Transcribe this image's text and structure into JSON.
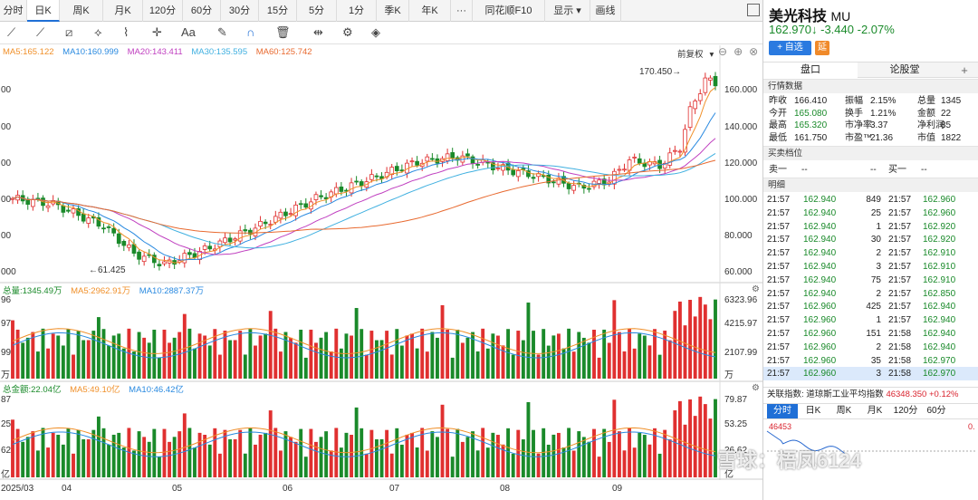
{
  "tabs": [
    "分时",
    "日K",
    "周K",
    "月K",
    "120分",
    "60分",
    "30分",
    "15分",
    "5分",
    "1分",
    "季K",
    "年K",
    "···",
    "同花顺F10",
    "显示 ▾",
    "画线"
  ],
  "tabs_active": "日K",
  "toolbar": {
    "icons": [
      "line-icon",
      "ray-icon",
      "channel-icon",
      "trend-icon",
      "wave-icon",
      "cross-icon",
      "text-icon",
      "eraser-icon",
      "magnet-icon",
      "trash-icon",
      "move-icon",
      "gear-icon",
      "layers-icon"
    ],
    "text_tool": "Aa"
  },
  "ma_price": {
    "ma5": "MA5:165.122",
    "ma10": "MA10:160.999",
    "ma20": "MA20:143.411",
    "ma30": "MA30:135.595",
    "ma60": "MA60:125.742",
    "adjust": "前复权",
    "colors": {
      "ma5": "#f0902a",
      "ma10": "#2a8ae0",
      "ma20": "#c040c0",
      "ma30": "#40b0e0",
      "ma60": "#e86a30"
    }
  },
  "price_axis": {
    "right": [
      "160.000",
      "140.000",
      "120.000",
      "100.000",
      "80.000",
      "60.000"
    ],
    "left": [
      "00",
      "00",
      "00",
      "00",
      "00",
      "000"
    ]
  },
  "annotations": {
    "high": "170.450→",
    "low": "←61.425"
  },
  "vol": {
    "title": "总量:1345.49万",
    "ma5": "MA5:2962.91万",
    "ma10": "MA10:2887.37万",
    "axis": [
      "6323.96",
      "4215.97",
      "2107.99",
      "万"
    ],
    "left": [
      "96",
      "97",
      "99",
      "万"
    ]
  },
  "amt": {
    "title": "总金额:22.04亿",
    "ma5": "MA5:49.10亿",
    "ma10": "MA10:46.42亿",
    "axis": [
      "79.87",
      "53.25",
      "26.62",
      "亿"
    ],
    "left": [
      "87",
      "25",
      "62",
      "亿"
    ]
  },
  "xaxis": [
    "2025/03",
    "04",
    "05",
    "06",
    "07",
    "08",
    "09"
  ],
  "watermark": "雪球：梧凤6124",
  "stock": {
    "name": "美光科技",
    "code": "MU",
    "price": "162.970↓",
    "change": "-3.440",
    "pct": "-2.07%",
    "add_btn": "+ 自选",
    "yan": "延"
  },
  "side_tabs": [
    "盘口",
    "论股堂",
    "+"
  ],
  "quote_title": "行情数据",
  "quote": [
    [
      "昨收",
      "166.410",
      "振幅",
      "2.15%",
      "总量",
      "1345"
    ],
    [
      "今开",
      "165.080",
      "换手",
      "1.21%",
      "金额",
      "22"
    ],
    [
      "最高",
      "165.320",
      "市净率",
      "3.37",
      "净利润",
      "85"
    ],
    [
      "最低",
      "161.750",
      "市盈™",
      "21.36",
      "市值",
      "1822"
    ]
  ],
  "bidask_title": "买卖档位",
  "bidask": {
    "sell": "卖一",
    "sell_v": "--",
    "buy": "买一",
    "buy_v": "--"
  },
  "detail_title": "明细",
  "ticks": [
    [
      "21:57",
      "162.940",
      "849",
      "21:57",
      "162.960"
    ],
    [
      "21:57",
      "162.940",
      "25",
      "21:57",
      "162.960"
    ],
    [
      "21:57",
      "162.940",
      "1",
      "21:57",
      "162.920"
    ],
    [
      "21:57",
      "162.940",
      "30",
      "21:57",
      "162.920"
    ],
    [
      "21:57",
      "162.940",
      "2",
      "21:57",
      "162.910"
    ],
    [
      "21:57",
      "162.940",
      "3",
      "21:57",
      "162.910"
    ],
    [
      "21:57",
      "162.940",
      "75",
      "21:57",
      "162.910"
    ],
    [
      "21:57",
      "162.940",
      "2",
      "21:57",
      "162.850"
    ],
    [
      "21:57",
      "162.960",
      "425",
      "21:57",
      "162.940"
    ],
    [
      "21:57",
      "162.960",
      "1",
      "21:57",
      "162.940"
    ],
    [
      "21:57",
      "162.960",
      "151",
      "21:58",
      "162.940"
    ],
    [
      "21:57",
      "162.960",
      "2",
      "21:58",
      "162.940"
    ],
    [
      "21:57",
      "162.960",
      "35",
      "21:58",
      "162.970"
    ],
    [
      "21:57",
      "162.960",
      "3",
      "21:58",
      "162.970"
    ]
  ],
  "index_bar": {
    "label": "关联指数:",
    "name": "道琼斯工业平均指数",
    "value": "46348.350",
    "pct": "+0.12%"
  },
  "mini_tabs": [
    "分时",
    "日K",
    "周K",
    "月K",
    "120分",
    "60分"
  ],
  "mini_price": "46453",
  "mini_right": "0."
}
